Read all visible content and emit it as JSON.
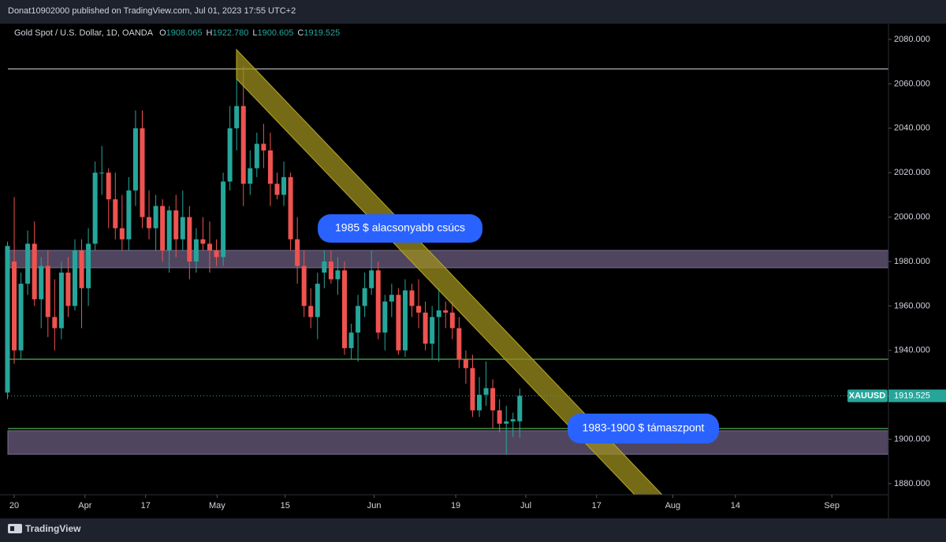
{
  "header": {
    "publisher": "Donat10902000 published on TradingView.com, Jul 01, 2023 17:55 UTC+2"
  },
  "footer": {
    "brand": "TradingView"
  },
  "chart_data": {
    "type": "candlestick",
    "legend": {
      "symbol": "Gold Spot / U.S. Dollar, 1D, OANDA",
      "ohlc": [
        {
          "key": "O",
          "value": "1908.065"
        },
        {
          "key": "H",
          "value": "1922.780"
        },
        {
          "key": "L",
          "value": "1900.605"
        },
        {
          "key": "C",
          "value": "1919.525"
        }
      ]
    },
    "up_color": "#26a69a",
    "down_color": "#ef5350",
    "x": [
      -1,
      0,
      1,
      2,
      3,
      4,
      5,
      6,
      7,
      8,
      9,
      10,
      11,
      12,
      13,
      14,
      15,
      16,
      17,
      18,
      19,
      20,
      21,
      22,
      23,
      24,
      25,
      26,
      27,
      28,
      29,
      30,
      31,
      32,
      33,
      34,
      35,
      36,
      37,
      38,
      39,
      40,
      41,
      42,
      43,
      44,
      45,
      46,
      47,
      48,
      49,
      50,
      51,
      52,
      53,
      54,
      55,
      56,
      57,
      58,
      59,
      60,
      61,
      62,
      63,
      64,
      65,
      66,
      67,
      68,
      69,
      70,
      71,
      72,
      73,
      74,
      75
    ],
    "open": [
      1921,
      1980,
      1940,
      1970,
      1988,
      1963,
      1978,
      1955,
      1950,
      1975,
      1960,
      1985,
      1968,
      1988,
      2020,
      2020,
      2008,
      1995,
      1990,
      2012,
      2040,
      2000,
      1995,
      2005,
      1985,
      2003,
      1990,
      2000,
      1980,
      1990,
      1988,
      1985,
      1982,
      2016,
      2040,
      2050,
      2015,
      2022,
      2033,
      2030,
      2015,
      2010,
      2018,
      1990,
      1978,
      1960,
      1955,
      1975,
      1980,
      1972,
      1976,
      1941,
      1948,
      1960,
      1968,
      1976,
      1948,
      1962,
      1965,
      1940,
      1967,
      1960,
      1957,
      1943,
      1955,
      1958,
      1957,
      1950,
      1936,
      1932,
      1913,
      1920,
      1923,
      1913,
      1907,
      1908,
      1908.065
    ],
    "high": [
      1989,
      2009,
      1975,
      1994,
      1998,
      1982,
      1985,
      1972,
      1980,
      1982,
      1990,
      1990,
      1995,
      2025,
      2032,
      2022,
      2020,
      2010,
      2018,
      2048,
      2048,
      2012,
      2010,
      2008,
      2005,
      2010,
      2012,
      2005,
      1995,
      2000,
      1998,
      1990,
      2020,
      2050,
      2072,
      2068,
      2030,
      2038,
      2042,
      2038,
      2020,
      2025,
      2020,
      2000,
      1985,
      1968,
      1975,
      1985,
      1985,
      1982,
      1980,
      1952,
      1965,
      1975,
      1985,
      1980,
      1965,
      1970,
      1968,
      1972,
      1970,
      1972,
      1962,
      1960,
      1968,
      1962,
      1962,
      1955,
      1940,
      1938,
      1928,
      1935,
      1927,
      1918,
      1915,
      1912,
      1922.78
    ],
    "low": [
      1918,
      1934,
      1936,
      1965,
      1960,
      1950,
      1946,
      1940,
      1945,
      1955,
      1958,
      1950,
      1960,
      1985,
      2010,
      1995,
      1990,
      1985,
      1985,
      2005,
      1995,
      1990,
      1985,
      1980,
      1975,
      1982,
      1985,
      1972,
      1975,
      1985,
      1975,
      1978,
      1978,
      2012,
      2030,
      2005,
      2010,
      2018,
      2022,
      2005,
      2008,
      2005,
      1985,
      1970,
      1955,
      1950,
      1945,
      1968,
      1970,
      1965,
      1938,
      1936,
      1935,
      1955,
      1965,
      1945,
      1940,
      1955,
      1938,
      1937,
      1955,
      1950,
      1940,
      1936,
      1935,
      1950,
      1945,
      1932,
      1925,
      1910,
      1910,
      1915,
      1905,
      1903,
      1893,
      1901,
      1900.605
    ],
    "close": [
      1987,
      1940,
      1970,
      1988,
      1963,
      1978,
      1955,
      1950,
      1975,
      1960,
      1985,
      1968,
      1988,
      2020,
      2020,
      2008,
      1995,
      1990,
      2012,
      2040,
      2000,
      1995,
      2005,
      1985,
      2003,
      1990,
      2000,
      1980,
      1990,
      1988,
      1985,
      1982,
      2016,
      2040,
      2050,
      2015,
      2022,
      2033,
      2030,
      2015,
      2010,
      2018,
      1990,
      1978,
      1960,
      1955,
      1970,
      1980,
      1972,
      1976,
      1941,
      1948,
      1960,
      1968,
      1976,
      1948,
      1962,
      1965,
      1940,
      1967,
      1960,
      1957,
      1943,
      1955,
      1958,
      1957,
      1950,
      1936,
      1932,
      1913,
      1920,
      1923,
      1913,
      1907,
      1908,
      1909,
      1919.525
    ],
    "xlim": [
      -0.94,
      129.7
    ],
    "xticks": [
      {
        "value": 0,
        "label": "20"
      },
      {
        "value": 10.5,
        "label": "Apr"
      },
      {
        "value": 19.5,
        "label": "17"
      },
      {
        "value": 30.1,
        "label": "May"
      },
      {
        "value": 40.2,
        "label": "15"
      },
      {
        "value": 53.4,
        "label": "Jun"
      },
      {
        "value": 65.5,
        "label": "19"
      },
      {
        "value": 75.9,
        "label": "Jul"
      },
      {
        "value": 86.4,
        "label": "17"
      },
      {
        "value": 97.7,
        "label": "Aug"
      },
      {
        "value": 107,
        "label": "14"
      },
      {
        "value": 121.3,
        "label": "Sep"
      }
    ],
    "ylim": [
      1875,
      2087.1
    ],
    "yticks": [
      {
        "value": 1880,
        "label": "1880.000"
      },
      {
        "value": 1900,
        "label": "1900.000"
      },
      {
        "value": 1920,
        "label": "1920.000"
      },
      {
        "value": 1940,
        "label": "1940.000"
      },
      {
        "value": 1960,
        "label": "1960.000"
      },
      {
        "value": 1980,
        "label": "1980.000"
      },
      {
        "value": 2000,
        "label": "2000.000"
      },
      {
        "value": 2020,
        "label": "2020.000"
      },
      {
        "value": 2040,
        "label": "2040.000"
      },
      {
        "value": 2060,
        "label": "2060.000"
      },
      {
        "value": 2080,
        "label": "2080.000"
      }
    ],
    "levels": [
      {
        "value": 2066.7,
        "color": "#b2b5be"
      },
      {
        "value": 1936,
        "color": "#4caf50"
      },
      {
        "value": 1904.8,
        "color": "#4caf50"
      }
    ],
    "zones": [
      {
        "low": 1977.2,
        "high": 1985,
        "color": "#5d5170"
      },
      {
        "low": 1893.2,
        "high": 1903.8,
        "color": "#5d5170"
      }
    ],
    "price_label": {
      "symbol": "XAUUSD",
      "value": 1919.525,
      "color": "#26a69a"
    },
    "annotations": [
      "1985 $ alacsonyabb csúcs",
      "1983-1900 $ támaszpont"
    ]
  }
}
